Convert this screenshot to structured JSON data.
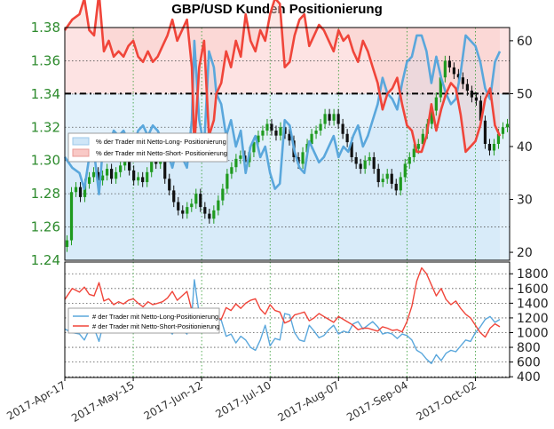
{
  "title": "GBP/USD Kunden Positionierung",
  "colors": {
    "long": "#5aa7dc",
    "short": "#f0453a",
    "candle_up": "#1f9a1f",
    "candle_down": "#111111",
    "band_short": "#fde3e3",
    "band_long": "#e3f1fb",
    "grid_green": "#2e9a2e",
    "grid_gray": "#555555"
  },
  "chart_data": [
    {
      "type": "line",
      "panel": "upper",
      "title": "GBP/USD Kunden Positionierung",
      "x_tick_labels": [
        "2017-Apr-17",
        "2017-May-15",
        "2017-Jun-12",
        "2017-Jul-10",
        "2017-Aug-07",
        "2017-Sep-04",
        "2017-Oct-02"
      ],
      "x_tick_days": [
        0,
        28,
        56,
        84,
        112,
        140,
        168
      ],
      "left_axis": {
        "ticks": [
          "1.24",
          "1.26",
          "1.28",
          "1.30",
          "1.32",
          "1.34",
          "1.36",
          "1.38"
        ],
        "ylim": [
          1.24,
          1.38
        ]
      },
      "right_axis": {
        "ticks": [
          "20",
          "30",
          "40",
          "50",
          "60"
        ],
        "ylim": [
          18.5,
          62.5
        ]
      },
      "reference_line": 50,
      "grid": true,
      "legend_position": "center-left",
      "series": [
        {
          "name": "% der Trader mit Netto-Long- Positionierung",
          "axis": "right",
          "x": [
            0,
            3,
            6,
            8,
            10,
            12,
            14,
            16,
            18,
            20,
            22,
            24,
            26,
            28,
            30,
            32,
            34,
            36,
            38,
            40,
            42,
            44,
            46,
            48,
            50,
            52,
            53,
            55,
            57,
            59,
            61,
            62,
            64,
            66,
            68,
            70,
            72,
            74,
            76,
            78,
            80,
            82,
            84,
            86,
            88,
            90,
            92,
            94,
            96,
            98,
            100,
            102,
            104,
            106,
            108,
            110,
            112,
            114,
            116,
            118,
            120,
            122,
            124,
            126,
            128,
            130,
            132,
            134,
            136,
            138,
            140,
            142,
            144,
            146,
            148,
            150,
            152,
            154,
            156,
            158,
            160,
            162,
            164,
            166,
            168,
            170,
            172,
            174,
            176,
            178
          ],
          "values": [
            38,
            36,
            35,
            32,
            38,
            39,
            31,
            42,
            40,
            43,
            42,
            43,
            41,
            40,
            43,
            44,
            42,
            44,
            43,
            41,
            39,
            36,
            40,
            38,
            36,
            45,
            60,
            45,
            40,
            58,
            55,
            50,
            48,
            42,
            45,
            40,
            43,
            35,
            40,
            42,
            38,
            40,
            35,
            32,
            33,
            45,
            44,
            39,
            36,
            35,
            41,
            39,
            37,
            38,
            40,
            42,
            38,
            40,
            39,
            42,
            44,
            40,
            42,
            45,
            48,
            53,
            50,
            49,
            47,
            52,
            56,
            57,
            61,
            61,
            58,
            52,
            57,
            53,
            50,
            48,
            49,
            54,
            61,
            60,
            59,
            56,
            51,
            49,
            56,
            58
          ]
        },
        {
          "name": "% der Trader mit Netto-Short- Positionierung",
          "axis": "right",
          "x": [
            0,
            3,
            6,
            8,
            10,
            12,
            14,
            16,
            18,
            20,
            22,
            24,
            26,
            28,
            30,
            32,
            34,
            36,
            38,
            40,
            42,
            44,
            46,
            48,
            50,
            52,
            53,
            55,
            57,
            59,
            61,
            62,
            64,
            66,
            68,
            70,
            72,
            74,
            76,
            78,
            80,
            82,
            84,
            86,
            88,
            90,
            92,
            94,
            96,
            98,
            100,
            102,
            104,
            106,
            108,
            110,
            112,
            114,
            116,
            118,
            120,
            122,
            124,
            126,
            128,
            130,
            132,
            134,
            136,
            138,
            140,
            142,
            144,
            146,
            148,
            150,
            152,
            154,
            156,
            158,
            160,
            162,
            164,
            166,
            168,
            170,
            172,
            174,
            176,
            178
          ],
          "values": [
            62,
            64,
            65,
            68,
            62,
            61,
            69,
            58,
            60,
            57,
            58,
            57,
            59,
            60,
            57,
            56,
            58,
            56,
            57,
            59,
            61,
            64,
            60,
            62,
            64,
            55,
            40,
            55,
            60,
            42,
            45,
            50,
            52,
            58,
            55,
            60,
            57,
            65,
            60,
            58,
            62,
            60,
            65,
            68,
            67,
            55,
            56,
            61,
            64,
            65,
            59,
            61,
            63,
            62,
            60,
            58,
            62,
            60,
            61,
            58,
            56,
            60,
            58,
            55,
            52,
            47,
            50,
            51,
            53,
            48,
            44,
            43,
            39,
            39,
            42,
            48,
            43,
            47,
            50,
            52,
            51,
            46,
            39,
            40,
            41,
            44,
            49,
            51,
            44,
            42
          ]
        }
      ],
      "candles": {
        "name": "GBP/USD",
        "axis": "left",
        "closes": [
          1.252,
          1.281,
          1.284,
          1.278,
          1.286,
          1.29,
          1.293,
          1.288,
          1.291,
          1.295,
          1.289,
          1.293,
          1.297,
          1.301,
          1.294,
          1.288,
          1.29,
          1.287,
          1.293,
          1.3,
          1.298,
          1.3,
          1.289,
          1.282,
          1.275,
          1.27,
          1.268,
          1.272,
          1.274,
          1.28,
          1.272,
          1.268,
          1.265,
          1.27,
          1.276,
          1.283,
          1.292,
          1.296,
          1.301,
          1.303,
          1.299,
          1.305,
          1.311,
          1.315,
          1.318,
          1.322,
          1.318,
          1.315,
          1.32,
          1.316,
          1.312,
          1.302,
          1.298,
          1.305,
          1.31,
          1.316,
          1.318,
          1.322,
          1.328,
          1.324,
          1.328,
          1.322,
          1.316,
          1.311,
          1.302,
          1.298,
          1.295,
          1.3,
          1.302,
          1.295,
          1.287,
          1.289,
          1.292,
          1.286,
          1.282,
          1.29,
          1.298,
          1.302,
          1.307,
          1.31,
          1.316,
          1.322,
          1.33,
          1.338,
          1.35,
          1.36,
          1.356,
          1.352,
          1.35,
          1.346,
          1.342,
          1.338,
          1.336,
          1.324,
          1.31,
          1.306,
          1.31,
          1.316,
          1.32,
          1.322
        ]
      }
    },
    {
      "type": "line",
      "panel": "lower",
      "right_axis": {
        "ticks": [
          "400",
          "600",
          "800",
          "1000",
          "1200",
          "1400",
          "1600",
          "1800"
        ],
        "ylim": [
          390,
          1960
        ]
      },
      "grid": true,
      "legend_position": "center-left",
      "series": [
        {
          "name": "# der Trader mit Netto-Long-Positionierung",
          "x": [
            0,
            3,
            6,
            8,
            10,
            12,
            14,
            16,
            18,
            20,
            22,
            24,
            26,
            28,
            30,
            32,
            34,
            36,
            38,
            40,
            42,
            44,
            46,
            48,
            50,
            52,
            53,
            55,
            57,
            59,
            61,
            62,
            64,
            66,
            68,
            70,
            72,
            74,
            76,
            78,
            80,
            82,
            84,
            86,
            88,
            90,
            92,
            94,
            96,
            98,
            100,
            102,
            104,
            106,
            108,
            110,
            112,
            114,
            116,
            118,
            120,
            122,
            124,
            126,
            128,
            130,
            132,
            134,
            136,
            138,
            140,
            142,
            144,
            146,
            148,
            150,
            152,
            154,
            156,
            158,
            160,
            162,
            164,
            166,
            168,
            170,
            172,
            174,
            176,
            178
          ],
          "values": [
            1050,
            1000,
            980,
            900,
            1040,
            1060,
            880,
            1150,
            1110,
            1180,
            1150,
            1180,
            1120,
            1100,
            1180,
            1220,
            1150,
            1200,
            1180,
            1120,
            1050,
            980,
            1100,
            1040,
            980,
            1240,
            1720,
            1250,
            1100,
            1000,
            1150,
            1180,
            1170,
            950,
            980,
            860,
            950,
            900,
            800,
            760,
            900,
            1100,
            820,
            920,
            900,
            1260,
            1240,
            1000,
            900,
            880,
            1100,
            1020,
            930,
            960,
            1040,
            1100,
            980,
            1020,
            1000,
            1120,
            1150,
            1050,
            1100,
            1150,
            1080,
            980,
            1000,
            980,
            920,
            980,
            960,
            900,
            760,
            720,
            640,
            580,
            700,
            620,
            720,
            760,
            740,
            820,
            900,
            880,
            1000,
            1080,
            1180,
            1220,
            1140,
            1180
          ]
        },
        {
          "name": "# der Trader mit Netto-Short-Positionierung",
          "x": [
            0,
            3,
            6,
            8,
            10,
            12,
            14,
            16,
            18,
            20,
            22,
            24,
            26,
            28,
            30,
            32,
            34,
            36,
            38,
            40,
            42,
            44,
            46,
            48,
            50,
            52,
            53,
            55,
            57,
            59,
            61,
            62,
            64,
            66,
            68,
            70,
            72,
            74,
            76,
            78,
            80,
            82,
            84,
            86,
            88,
            90,
            92,
            94,
            96,
            98,
            100,
            102,
            104,
            106,
            108,
            110,
            112,
            114,
            116,
            118,
            120,
            122,
            124,
            126,
            128,
            130,
            132,
            134,
            136,
            138,
            140,
            142,
            144,
            146,
            148,
            150,
            152,
            154,
            156,
            158,
            160,
            162,
            164,
            166,
            168,
            170,
            172,
            174,
            176,
            178
          ],
          "values": [
            1450,
            1600,
            1550,
            1620,
            1520,
            1500,
            1680,
            1430,
            1460,
            1380,
            1420,
            1390,
            1440,
            1460,
            1400,
            1350,
            1420,
            1380,
            1400,
            1420,
            1470,
            1560,
            1440,
            1500,
            1560,
            1300,
            1140,
            1260,
            1300,
            1190,
            1200,
            1220,
            1180,
            1340,
            1300,
            1390,
            1330,
            1400,
            1440,
            1460,
            1320,
            1250,
            1380,
            1300,
            1280,
            1130,
            1160,
            1240,
            1260,
            1280,
            1160,
            1200,
            1260,
            1220,
            1180,
            1140,
            1220,
            1180,
            1140,
            1100,
            1040,
            1060,
            1060,
            1040,
            1020,
            1080,
            1060,
            1030,
            1040,
            1010,
            1150,
            1360,
            1700,
            1880,
            1800,
            1650,
            1500,
            1600,
            1450,
            1380,
            1430,
            1330,
            1250,
            1200,
            1100,
            1000,
            940,
            1060,
            1120,
            1080
          ]
        }
      ]
    }
  ]
}
